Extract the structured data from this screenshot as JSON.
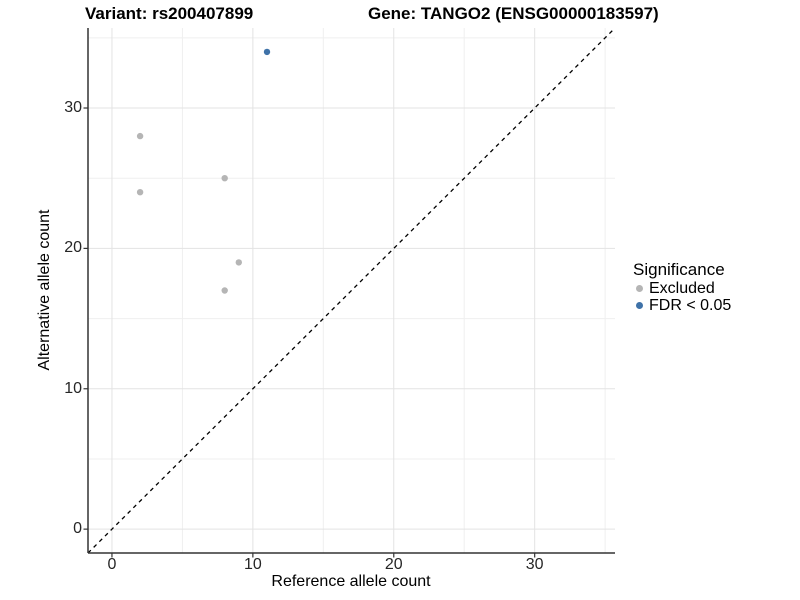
{
  "chart_data": {
    "type": "scatter",
    "title_variant": "Variant: rs200407899",
    "title_gene": "Gene: TANGO2 (ENSG00000183597)",
    "xlabel": "Reference allele count",
    "ylabel": "Alternative allele count",
    "xlim": [
      -1.7,
      35.7
    ],
    "ylim": [
      -1.7,
      35.7
    ],
    "x_major_ticks": [
      0,
      10,
      20,
      30
    ],
    "y_major_ticks": [
      0,
      10,
      20,
      30
    ],
    "x_minor_ticks": [
      5,
      15,
      25,
      35
    ],
    "y_minor_ticks": [
      5,
      15,
      25,
      35
    ],
    "grid": true,
    "legend_position": "right",
    "legend": {
      "title": "Significance",
      "entries": [
        "Excluded",
        "FDR < 0.05"
      ]
    },
    "reference_line": {
      "equation": "y = x",
      "style": "dashed",
      "color": "#000000"
    },
    "series": [
      {
        "name": "Excluded",
        "color": "#b5b5b5",
        "points": [
          [
            2,
            28
          ],
          [
            2,
            24
          ],
          [
            8,
            25
          ],
          [
            9,
            19
          ],
          [
            8,
            17
          ]
        ]
      },
      {
        "name": "FDR < 0.05",
        "color": "#3f72a8",
        "points": [
          [
            11,
            34
          ]
        ]
      }
    ],
    "style_colors": {
      "grid_major": "#e3e3e3",
      "grid_minor": "#efefef",
      "axis_line": "#333333",
      "tick_text": "#262626"
    }
  }
}
